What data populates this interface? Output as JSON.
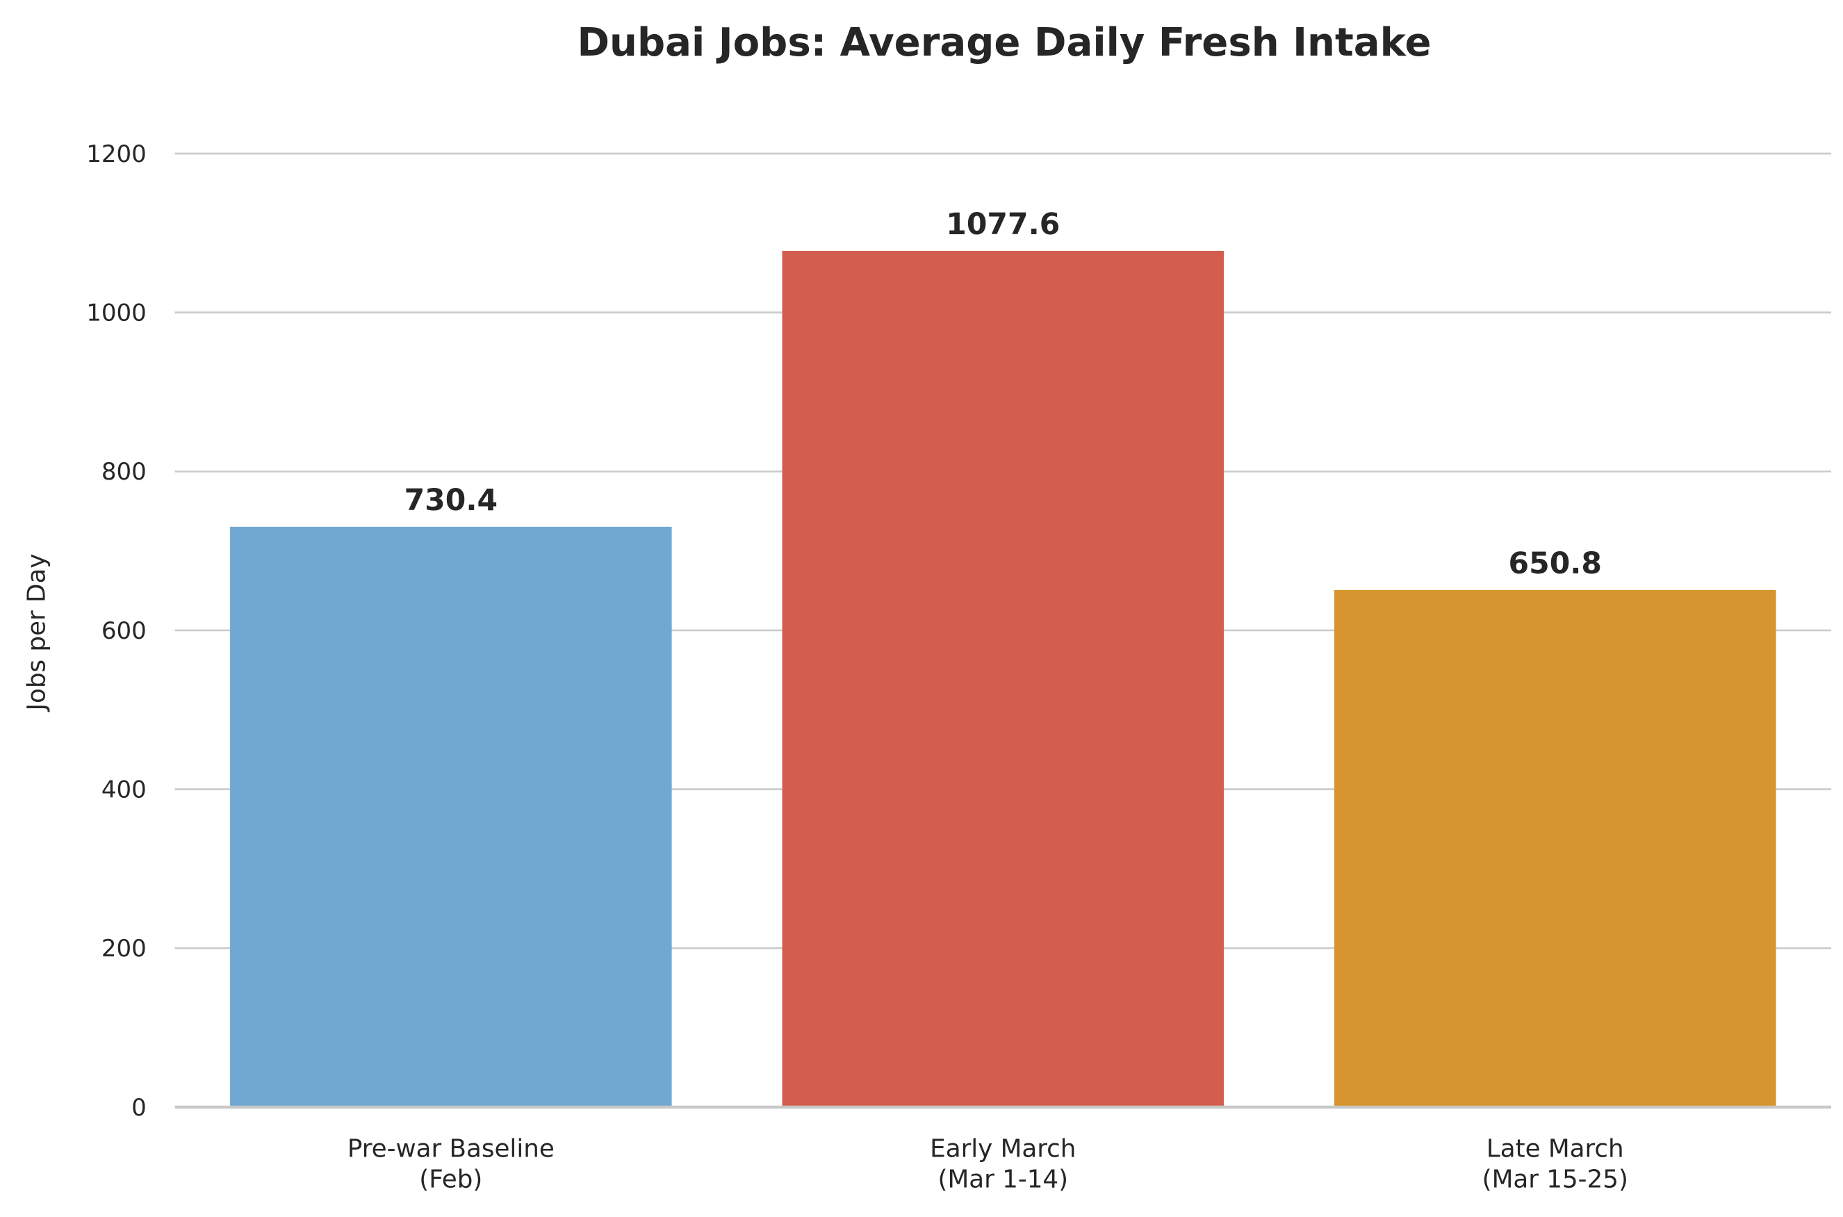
{
  "chart_data": {
    "type": "bar",
    "title": "Dubai Jobs: Average Daily Fresh Intake",
    "xlabel": "",
    "ylabel": "Jobs per Day",
    "categories": [
      [
        "Pre-war Baseline",
        "(Feb)"
      ],
      [
        "Early March",
        "(Mar 1-14)"
      ],
      [
        "Late March",
        "(Mar 15-25)"
      ]
    ],
    "values": [
      730.4,
      1077.6,
      650.8
    ],
    "value_labels": [
      "730.4",
      "1077.6",
      "650.8"
    ],
    "colors": [
      "#6FA9D2",
      "#D35E50",
      "#D6952E"
    ],
    "ylim": [
      0,
      1200
    ],
    "yticks": [
      0,
      200,
      400,
      600,
      800,
      1000,
      1200
    ],
    "grid": "horizontal",
    "legend": "none"
  }
}
